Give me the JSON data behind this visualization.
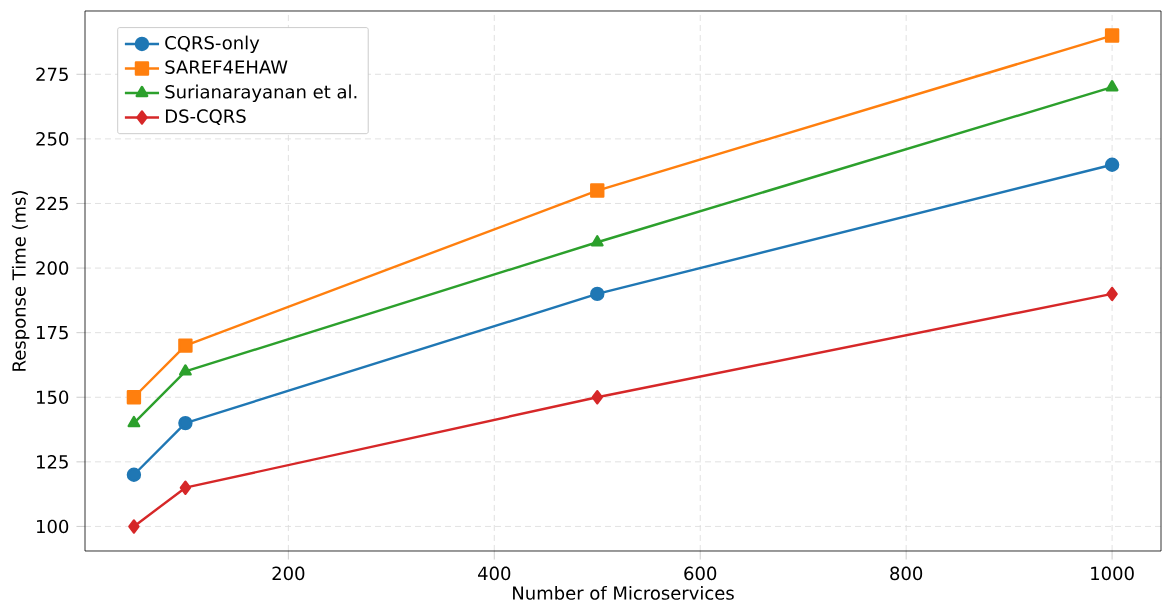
{
  "chart_data": {
    "type": "line",
    "xlabel": "Number of Microservices",
    "ylabel": "Response Time (ms)",
    "x": [
      50,
      100,
      500,
      1000
    ],
    "series": [
      {
        "name": "CQRS-only",
        "color": "#1f77b4",
        "marker": "circle",
        "values": [
          120,
          140,
          190,
          240
        ]
      },
      {
        "name": "SAREF4EHAW",
        "color": "#ff7f0e",
        "marker": "square",
        "values": [
          150,
          170,
          230,
          290
        ]
      },
      {
        "name": "Surianarayanan et al.",
        "color": "#2ca02c",
        "marker": "triangle",
        "values": [
          140,
          160,
          210,
          270
        ]
      },
      {
        "name": "DS-CQRS",
        "color": "#d62728",
        "marker": "diamond",
        "values": [
          100,
          115,
          150,
          190
        ]
      }
    ],
    "xlim": [
      2.5,
      1047.5
    ],
    "ylim": [
      90.5,
      299.5
    ],
    "xticks": [
      200,
      400,
      600,
      800,
      1000
    ],
    "yticks": [
      100,
      125,
      150,
      175,
      200,
      225,
      250,
      275
    ],
    "grid": true,
    "legend": "top left",
    "line_style": "solid"
  }
}
